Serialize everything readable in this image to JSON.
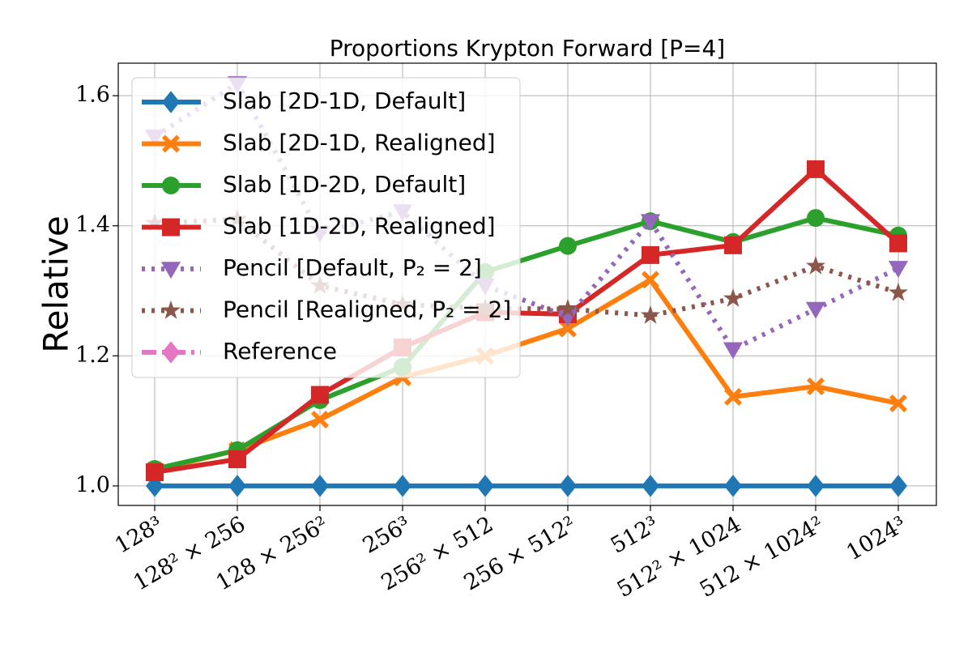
{
  "chart_data": {
    "type": "line",
    "title": "Proportions Krypton Forward [P=4]",
    "ylabel": "Relative",
    "categories": [
      "128³",
      "128² × 256",
      "128 × 256²",
      "256³",
      "256² × 512",
      "256 × 512²",
      "512³",
      "512² × 1024",
      "512 × 1024²",
      "1024³"
    ],
    "series": [
      {
        "name": "Slab [2D-1D, Default]",
        "color": "#1f77b4",
        "marker": "diamond",
        "linestyle": "solid",
        "values": [
          1.0,
          1.0,
          1.0,
          1.0,
          1.0,
          1.0,
          1.0,
          1.0,
          1.0,
          1.0
        ]
      },
      {
        "name": "Slab [2D-1D, Realigned]",
        "color": "#ff7f0e",
        "marker": "x",
        "linestyle": "solid",
        "values": [
          1.024,
          1.055,
          1.102,
          1.167,
          1.2,
          1.242,
          1.317,
          1.137,
          1.153,
          1.127
        ]
      },
      {
        "name": "Slab [1D-2D, Default]",
        "color": "#2ca02c",
        "marker": "circle",
        "linestyle": "solid",
        "values": [
          1.026,
          1.055,
          1.132,
          1.183,
          1.329,
          1.369,
          1.407,
          1.375,
          1.412,
          1.385
        ]
      },
      {
        "name": "Slab [1D-2D, Realigned]",
        "color": "#d62728",
        "marker": "square",
        "linestyle": "solid",
        "values": [
          1.021,
          1.041,
          1.14,
          1.213,
          1.267,
          1.264,
          1.355,
          1.37,
          1.487,
          1.373
        ]
      },
      {
        "name": "Pencil [Default, P₂ = 2]",
        "color": "#9467bd",
        "marker": "triangle-down",
        "linestyle": "dotted",
        "values": [
          1.537,
          1.619,
          1.389,
          1.422,
          1.308,
          1.26,
          1.407,
          1.21,
          1.272,
          1.335
        ]
      },
      {
        "name": "Pencil [Realigned, P₂ = 2]",
        "color": "#8c564b",
        "marker": "star",
        "linestyle": "dotted",
        "values": [
          1.404,
          1.41,
          1.308,
          1.279,
          1.273,
          1.272,
          1.262,
          1.288,
          1.338,
          1.297
        ]
      },
      {
        "name": "Reference",
        "color": "#e377c2",
        "marker": "diamond",
        "linestyle": "dashdot",
        "values": [
          null,
          null,
          null,
          null,
          null,
          null,
          null,
          null,
          null,
          null
        ]
      }
    ],
    "ylim": [
      0.97,
      1.65
    ],
    "yticks": [
      {
        "value": 1,
        "label": "1.0"
      },
      {
        "value": 1.2,
        "label": "1.2"
      },
      {
        "value": 1.4,
        "label": "1.4"
      },
      {
        "value": 1.6,
        "label": "1.6"
      }
    ],
    "grid": true,
    "legend": "upper left"
  }
}
